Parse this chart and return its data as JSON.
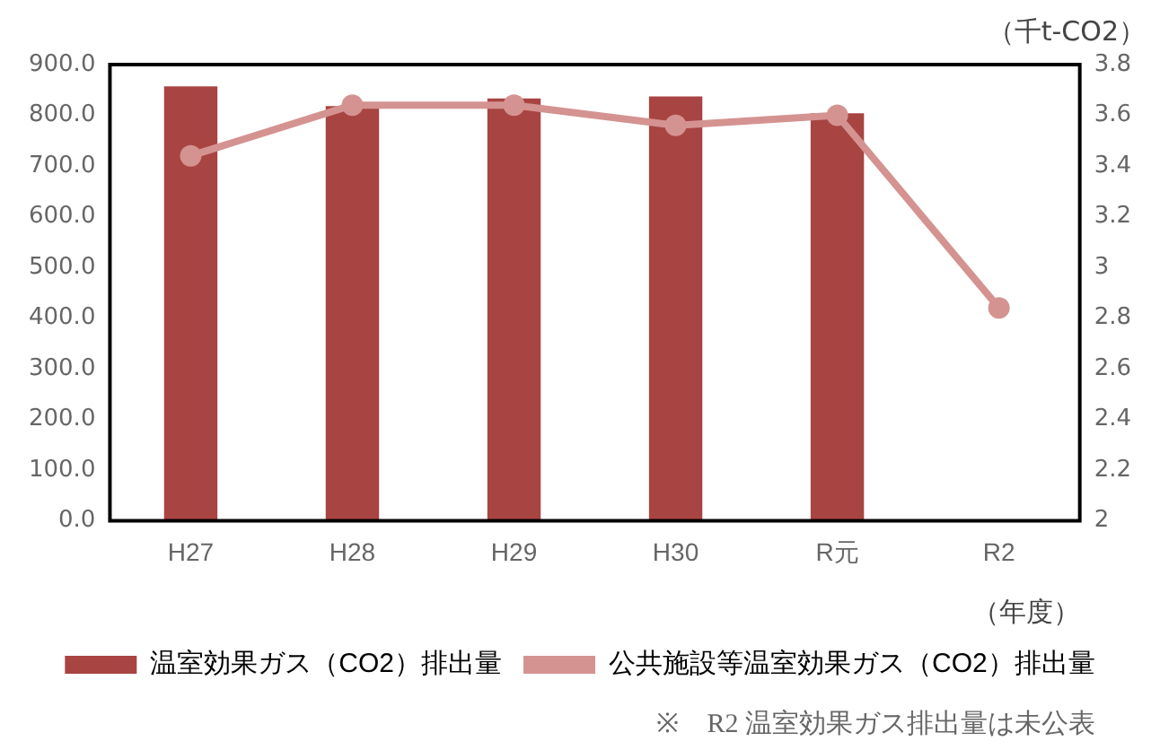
{
  "chart_data": {
    "type": "bar",
    "categories": [
      "H27",
      "H28",
      "H29",
      "H30",
      "R元",
      "R2"
    ],
    "series": [
      {
        "name": "温室効果ガス（CO2）排出量",
        "color": "#a84442",
        "values": [
          857,
          818,
          833,
          837,
          804,
          null
        ]
      },
      {
        "name": "公共施設等温室効果ガス（CO2）排出量",
        "type": "line",
        "axis": "y2",
        "color": "#d49391",
        "values": [
          3.44,
          3.64,
          3.64,
          3.56,
          3.6,
          2.84
        ]
      }
    ],
    "ylim": [
      0,
      900
    ],
    "yticks": [
      {
        "value": 0,
        "label": "0.0"
      },
      {
        "value": 100,
        "label": "100.0"
      },
      {
        "value": 200,
        "label": "200.0"
      },
      {
        "value": 300,
        "label": "300.0"
      },
      {
        "value": 400,
        "label": "400.0"
      },
      {
        "value": 500,
        "label": "500.0"
      },
      {
        "value": 600,
        "label": "600.0"
      },
      {
        "value": 700,
        "label": "700.0"
      },
      {
        "value": 800,
        "label": "800.0"
      },
      {
        "value": 900,
        "label": "900.0"
      }
    ],
    "y2lim": [
      2,
      3.8
    ],
    "y2ticks": [
      2,
      2.2,
      2.4,
      2.6,
      2.8,
      3,
      3.2,
      3.4,
      3.6,
      3.8
    ],
    "y2label": "（千t-CO2）",
    "xlabel": "（年度）",
    "annotations": [
      "※　R2 温室効果ガス排出量は未公表"
    ],
    "grid": false,
    "legend": "bottom",
    "marker": "circle",
    "line_style": "solid"
  }
}
